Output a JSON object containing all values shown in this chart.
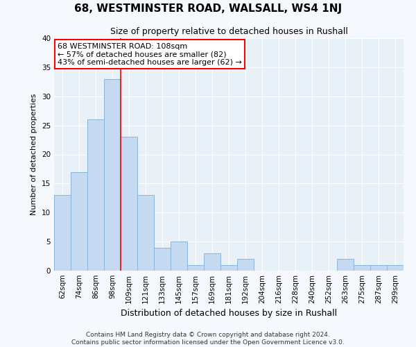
{
  "title": "68, WESTMINSTER ROAD, WALSALL, WS4 1NJ",
  "subtitle": "Size of property relative to detached houses in Rushall",
  "xlabel": "Distribution of detached houses by size in Rushall",
  "ylabel": "Number of detached properties",
  "categories": [
    "62sqm",
    "74sqm",
    "86sqm",
    "98sqm",
    "109sqm",
    "121sqm",
    "133sqm",
    "145sqm",
    "157sqm",
    "169sqm",
    "181sqm",
    "192sqm",
    "204sqm",
    "216sqm",
    "228sqm",
    "240sqm",
    "252sqm",
    "263sqm",
    "275sqm",
    "287sqm",
    "299sqm"
  ],
  "values": [
    13,
    17,
    26,
    33,
    23,
    13,
    4,
    5,
    1,
    3,
    1,
    2,
    0,
    0,
    0,
    0,
    0,
    2,
    1,
    1,
    1
  ],
  "bar_color": "#c5d9f0",
  "bar_edge_color": "#8ab4d8",
  "red_line_x": 4.0,
  "ylim": [
    0,
    40
  ],
  "yticks": [
    0,
    5,
    10,
    15,
    20,
    25,
    30,
    35,
    40
  ],
  "annotation_title": "68 WESTMINSTER ROAD: 108sqm",
  "annotation_line1": "← 57% of detached houses are smaller (82)",
  "annotation_line2": "43% of semi-detached houses are larger (62) →",
  "footer_line1": "Contains HM Land Registry data © Crown copyright and database right 2024.",
  "footer_line2": "Contains public sector information licensed under the Open Government Licence v3.0.",
  "background_color": "#f5f8fd",
  "plot_bg_color": "#e8f0f8",
  "grid_color": "#ffffff",
  "title_fontsize": 11,
  "subtitle_fontsize": 9,
  "ylabel_fontsize": 8,
  "xlabel_fontsize": 9,
  "tick_fontsize": 7.5,
  "annotation_fontsize": 8,
  "footer_fontsize": 6.5
}
